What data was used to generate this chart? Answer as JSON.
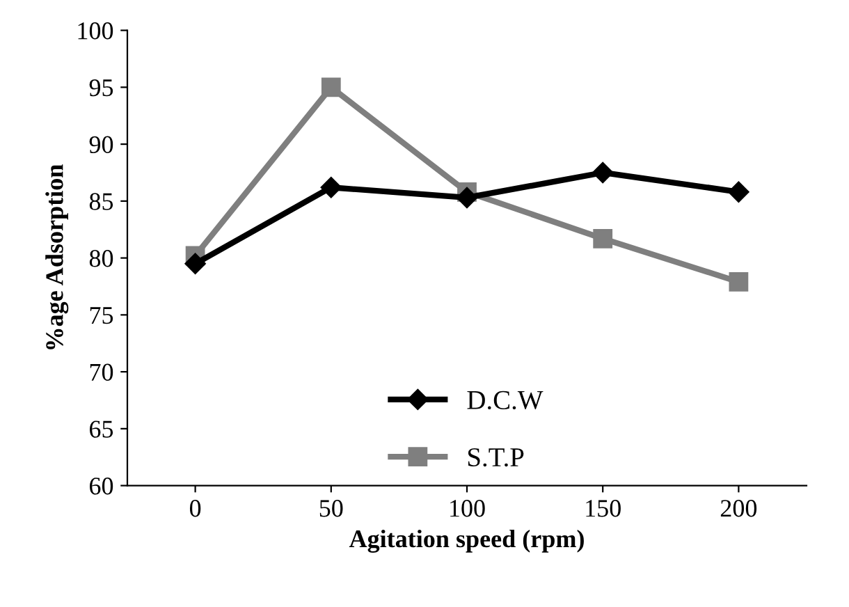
{
  "chart_data": {
    "type": "line",
    "xlabel": "Agitation speed (rpm)",
    "ylabel": "%age Adsorption",
    "categories": [
      "0",
      "50",
      "100",
      "150",
      "200"
    ],
    "series": [
      {
        "name": "D.C.W",
        "color": "#000000",
        "marker": "diamond",
        "values": [
          79.5,
          86.2,
          85.3,
          87.5,
          85.8
        ]
      },
      {
        "name": "S.T.P",
        "color": "#7f7f7f",
        "marker": "square",
        "values": [
          80.2,
          95,
          85.8,
          81.7,
          77.9
        ]
      }
    ],
    "ylim": [
      60,
      100
    ],
    "yticks": [
      60,
      65,
      70,
      75,
      80,
      85,
      90,
      95,
      100
    ],
    "grid": false,
    "legend": "bottom"
  }
}
